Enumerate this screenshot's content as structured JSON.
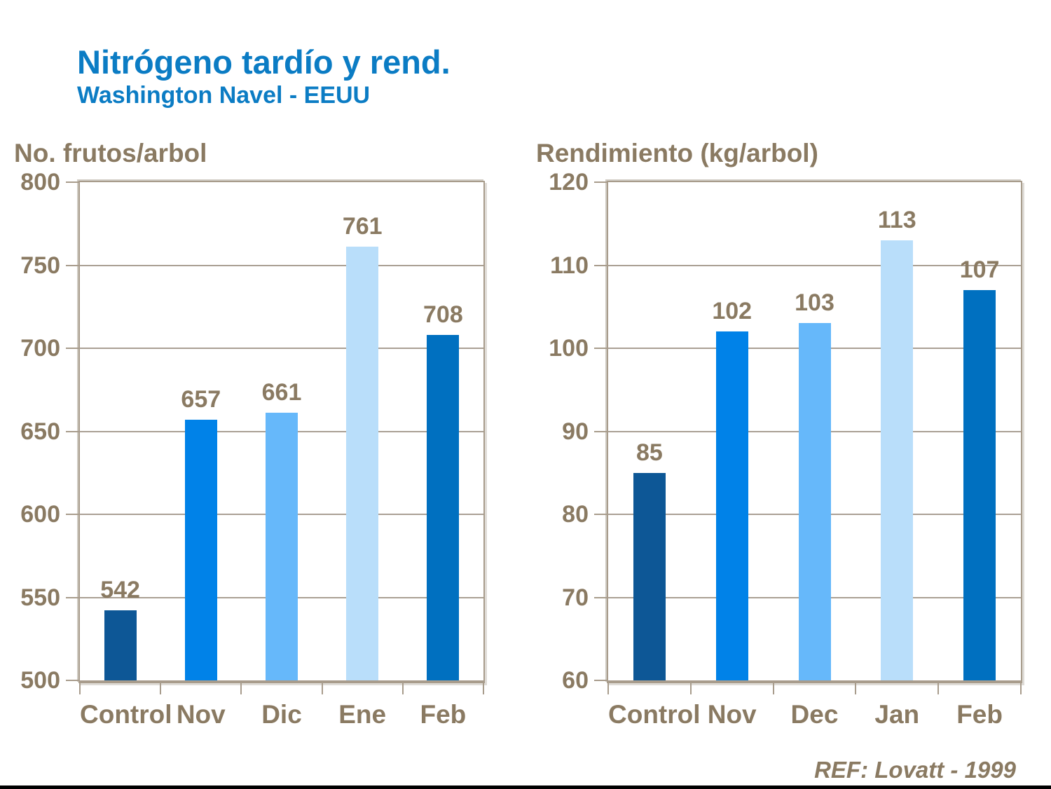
{
  "page": {
    "title": "Nitrógeno tardío y rend.",
    "subtitle": "Washington Navel - EEUU",
    "footer_ref": "REF: Lovatt - 1999"
  },
  "colors": {
    "title_blue": "#0b7cc4",
    "text_brown": "#8a7a62",
    "axis_tan": "#a89c8c",
    "gridline": "#aaa094",
    "bar_colors": [
      "#0d5796",
      "#0082e8",
      "#66b8fa",
      "#b9defa",
      "#0070c0"
    ]
  },
  "chart_data": [
    {
      "type": "bar",
      "title": "No. frutos/arbol",
      "categories": [
        "Control",
        "Nov",
        "Dic",
        "Ene",
        "Feb"
      ],
      "values": [
        542,
        657,
        661,
        761,
        708
      ],
      "ylim": [
        500,
        800
      ],
      "ytick_step": 50,
      "ytick_labels": [
        "500",
        "550",
        "600",
        "650",
        "700",
        "750",
        "800"
      ],
      "grid": true,
      "legend": "none",
      "value_labels_shown": true
    },
    {
      "type": "bar",
      "title": "Rendimiento (kg/arbol)",
      "categories": [
        "Control",
        "Nov",
        "Dec",
        "Jan",
        "Feb"
      ],
      "values": [
        85,
        102,
        103,
        113,
        107
      ],
      "ylim": [
        60,
        120
      ],
      "ytick_step": 10,
      "ytick_labels": [
        "60",
        "70",
        "80",
        "90",
        "100",
        "110",
        "120"
      ],
      "grid": true,
      "legend": "none",
      "value_labels_shown": true
    }
  ]
}
